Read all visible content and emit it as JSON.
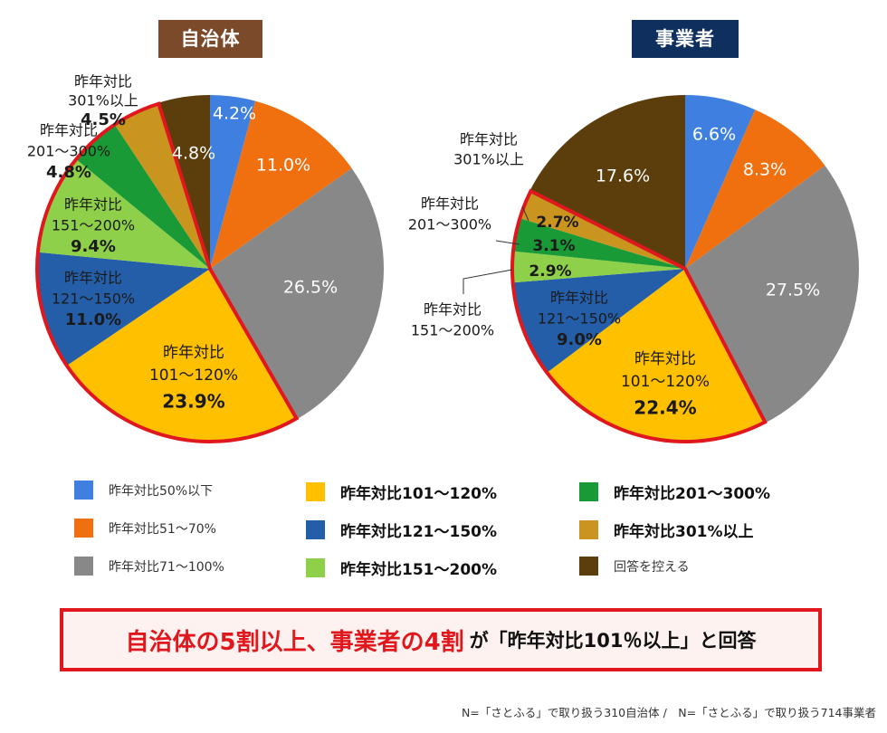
{
  "titles": {
    "left": "自治体",
    "right": "事業者"
  },
  "colors": {
    "badge_left": "#7a4a2a",
    "badge_right": "#0f2f5e",
    "highlight": "#e0181e",
    "inside_label": "#ffffff",
    "bold_label": "#1a1a1a"
  },
  "chart_data": [
    {
      "type": "pie",
      "title": "自治体",
      "slices": [
        {
          "key": "s50",
          "name": "昨年対比50%以下",
          "value": 4.2,
          "color": "#3f7fe0",
          "label_lines": [
            "4.2%"
          ]
        },
        {
          "key": "s51",
          "name": "昨年対比51〜70%",
          "value": 11.0,
          "color": "#f07010",
          "label_lines": [
            "11.0%"
          ]
        },
        {
          "key": "s71",
          "name": "昨年対比71〜100%",
          "value": 26.5,
          "color": "#888888",
          "label_lines": [
            "26.5%"
          ]
        },
        {
          "key": "s101",
          "name": "昨年対比101〜120%",
          "value": 23.9,
          "color": "#ffc000",
          "label_lines": [
            "昨年対比",
            "101〜120%",
            "23.9%"
          ]
        },
        {
          "key": "s121",
          "name": "昨年対比121〜150%",
          "value": 11.0,
          "color": "#255ea8",
          "label_lines": [
            "昨年対比",
            "121〜150%",
            "11.0%"
          ]
        },
        {
          "key": "s151",
          "name": "昨年対比151〜200%",
          "value": 9.4,
          "color": "#8ed04a",
          "label_lines": [
            "昨年対比",
            "151〜200%",
            "9.4%"
          ]
        },
        {
          "key": "s201",
          "name": "昨年対比201〜300%",
          "value": 4.8,
          "color": "#1a9a36",
          "label_lines": [
            "昨年対比",
            "201〜300%",
            "4.8%"
          ]
        },
        {
          "key": "s301",
          "name": "昨年対比301%以上",
          "value": 4.5,
          "color": "#c9951e",
          "label_lines": [
            "昨年対比",
            "301%以上",
            "4.5%"
          ]
        },
        {
          "key": "none",
          "name": "回答を控える",
          "value": 4.8,
          "color": "#5c3e0c",
          "label_lines": [
            "4.8%"
          ]
        }
      ]
    },
    {
      "type": "pie",
      "title": "事業者",
      "slices": [
        {
          "key": "s50",
          "name": "昨年対比50%以下",
          "value": 6.6,
          "color": "#3f7fe0",
          "label_lines": [
            "6.6%"
          ]
        },
        {
          "key": "s51",
          "name": "昨年対比51〜70%",
          "value": 8.3,
          "color": "#f07010",
          "label_lines": [
            "8.3%"
          ]
        },
        {
          "key": "s71",
          "name": "昨年対比71〜100%",
          "value": 27.5,
          "color": "#888888",
          "label_lines": [
            "27.5%"
          ]
        },
        {
          "key": "s101",
          "name": "昨年対比101〜120%",
          "value": 22.4,
          "color": "#ffc000",
          "label_lines": [
            "昨年対比",
            "101〜120%",
            "22.4%"
          ]
        },
        {
          "key": "s121",
          "name": "昨年対比121〜150%",
          "value": 9.0,
          "color": "#255ea8",
          "label_lines": [
            "昨年対比",
            "121〜150%",
            "9.0%"
          ]
        },
        {
          "key": "s151",
          "name": "昨年対比151〜200%",
          "value": 2.9,
          "color": "#8ed04a",
          "label_lines": [
            "昨年対比",
            "151〜200%",
            "2.9%"
          ]
        },
        {
          "key": "s201",
          "name": "昨年対比201〜300%",
          "value": 3.1,
          "color": "#1a9a36",
          "label_lines": [
            "昨年対比",
            "201〜300%",
            "3.1%"
          ]
        },
        {
          "key": "s301",
          "name": "昨年対比301%以上",
          "value": 2.7,
          "color": "#c9951e",
          "label_lines": [
            "昨年対比",
            "301%以上",
            "2.7%"
          ]
        },
        {
          "key": "none",
          "name": "回答を控える",
          "value": 17.6,
          "color": "#5c3e0c",
          "label_lines": [
            "17.6%"
          ]
        }
      ]
    }
  ],
  "legend": [
    {
      "label": "昨年対比50%以下",
      "color": "#3f7fe0",
      "bold": false
    },
    {
      "label": "昨年対比51〜70%",
      "color": "#f07010",
      "bold": false
    },
    {
      "label": "昨年対比71〜100%",
      "color": "#888888",
      "bold": false
    },
    {
      "label": "昨年対比101〜120%",
      "color": "#ffc000",
      "bold": true
    },
    {
      "label": "昨年対比121〜150%",
      "color": "#255ea8",
      "bold": true
    },
    {
      "label": "昨年対比151〜200%",
      "color": "#8ed04a",
      "bold": true
    },
    {
      "label": "昨年対比201〜300%",
      "color": "#1a9a36",
      "bold": true
    },
    {
      "label": "昨年対比301%以上",
      "color": "#c9951e",
      "bold": true
    },
    {
      "label": "回答を控える",
      "color": "#5c3e0c",
      "bold": false
    }
  ],
  "banner": {
    "highlight": "自治体の5割以上、事業者の4割",
    "text": "が「昨年対比101％以上」と回答"
  },
  "footnote": "N=「さとふる」で取り扱う310自治体 /　N=「さとふる」で取り扱う714事業者"
}
